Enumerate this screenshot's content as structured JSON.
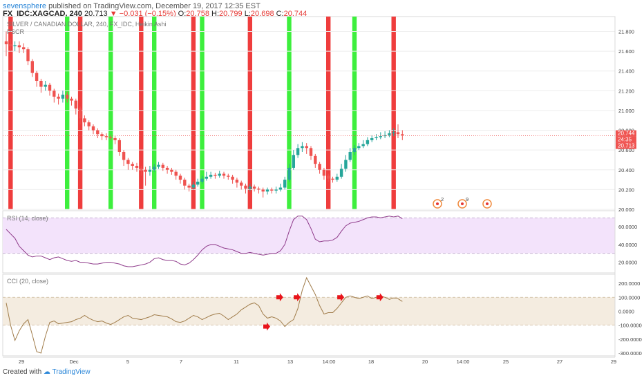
{
  "header": {
    "publisher": "sevensphere",
    "published_text": "published on TradingView.com, December 19, 2017 12:35 EST",
    "symbol": "FX_IDC:XAGCAD, 240",
    "last_price": "20.713",
    "change": "−0.031 (−0.15%)",
    "open_label": "O:",
    "open": "20.758",
    "high_label": "H:",
    "high": "20.799",
    "low_label": "L:",
    "low": "20.698",
    "close_label": "C:",
    "close": "20.744"
  },
  "main_pane": {
    "title": "SILVER / CANADIAN DOLLAR, 240, FX_IDC, Heikin Ashi",
    "indicator": "PSCR"
  },
  "rsi_pane": {
    "title": "RSI (14, close)"
  },
  "cci_pane": {
    "title": "CCI (20, close)"
  },
  "footer": {
    "created_with": "Created with",
    "brand": "TradingView"
  },
  "colors": {
    "bull": "#26a69a",
    "bear": "#ef5350",
    "green_band": "#33ee33",
    "red_band": "#ee3333",
    "rsi_line": "#8e3a8a",
    "rsi_band": "#f3e3fb",
    "cci_line": "#a07c4a",
    "cci_band": "#f4ece0",
    "price_line": "#ef5350",
    "axis_text": "#444444",
    "grid": "#eeeeee"
  },
  "chart_data": [
    {
      "type": "candlestick",
      "title": "SILVER / CANADIAN DOLLAR, 240, FX_IDC, Heikin Ashi",
      "ylim": [
        20.0,
        21.95
      ],
      "y_ticks": [
        "20.000",
        "20.200",
        "20.400",
        "20.600",
        "20.800",
        "21.000",
        "21.200",
        "21.400",
        "21.600",
        "21.800"
      ],
      "x_ticks": [
        "29",
        "Dec",
        "5",
        "7",
        "11",
        "13",
        "14:00",
        "18",
        "20",
        "14:00",
        "25",
        "27",
        "29"
      ],
      "price_labels": {
        "close": "20.744",
        "countdown": "24:35",
        "last": "20.713"
      },
      "candles": [
        [
          21.7,
          21.67,
          21.8,
          21.55
        ],
        [
          21.67,
          21.65,
          21.72,
          21.6
        ],
        [
          21.65,
          21.66,
          21.7,
          21.6
        ],
        [
          21.66,
          21.64,
          21.7,
          21.58
        ],
        [
          21.64,
          21.62,
          21.68,
          21.58
        ],
        [
          21.62,
          21.5,
          21.64,
          21.46
        ],
        [
          21.5,
          21.38,
          21.52,
          21.34
        ],
        [
          21.38,
          21.3,
          21.4,
          21.24
        ],
        [
          21.3,
          21.24,
          21.32,
          21.18
        ],
        [
          21.24,
          21.26,
          21.3,
          21.2
        ],
        [
          21.26,
          21.2,
          21.28,
          21.15
        ],
        [
          21.2,
          21.14,
          21.22,
          21.08
        ],
        [
          21.14,
          21.12,
          21.17,
          21.06
        ],
        [
          21.12,
          21.16,
          21.2,
          21.08
        ],
        [
          21.16,
          21.12,
          21.19,
          21.08
        ],
        [
          21.12,
          21.1,
          21.14,
          21.05
        ],
        [
          21.1,
          21.02,
          21.12,
          20.96
        ],
        [
          21.02,
          20.92,
          21.04,
          20.86
        ],
        [
          20.92,
          20.88,
          20.95,
          20.84
        ],
        [
          20.88,
          20.84,
          20.9,
          20.8
        ],
        [
          20.84,
          20.8,
          20.86,
          20.76
        ],
        [
          20.8,
          20.76,
          20.82,
          20.72
        ],
        [
          20.76,
          20.74,
          20.78,
          20.7
        ],
        [
          20.74,
          20.73,
          20.77,
          20.7
        ],
        [
          20.73,
          20.72,
          20.75,
          20.7
        ],
        [
          20.72,
          20.7,
          20.74,
          20.66
        ],
        [
          20.7,
          20.58,
          20.72,
          20.54
        ],
        [
          20.58,
          20.5,
          20.6,
          20.44
        ],
        [
          20.5,
          20.46,
          20.52,
          20.4
        ],
        [
          20.46,
          20.44,
          20.48,
          20.4
        ],
        [
          20.44,
          20.42,
          20.47,
          20.38
        ],
        [
          20.42,
          20.4,
          20.44,
          20.34
        ],
        [
          20.4,
          20.38,
          20.43,
          20.24
        ],
        [
          20.38,
          20.4,
          20.44,
          20.34
        ],
        [
          20.4,
          20.43,
          20.46,
          20.38
        ],
        [
          20.43,
          20.45,
          20.48,
          20.41
        ],
        [
          20.45,
          20.42,
          20.47,
          20.39
        ],
        [
          20.42,
          20.4,
          20.44,
          20.36
        ],
        [
          20.4,
          20.38,
          20.42,
          20.35
        ],
        [
          20.38,
          20.34,
          20.4,
          20.3
        ],
        [
          20.34,
          20.3,
          20.36,
          20.26
        ],
        [
          20.3,
          20.24,
          20.32,
          20.2
        ],
        [
          20.24,
          20.22,
          20.26,
          20.18
        ],
        [
          20.22,
          20.25,
          20.28,
          20.2
        ],
        [
          20.25,
          20.28,
          20.31,
          20.23
        ],
        [
          20.28,
          20.31,
          20.34,
          20.26
        ],
        [
          20.31,
          20.33,
          20.38,
          20.29
        ],
        [
          20.33,
          20.35,
          20.38,
          20.31
        ],
        [
          20.35,
          20.34,
          20.37,
          20.31
        ],
        [
          20.34,
          20.36,
          20.39,
          20.32
        ],
        [
          20.36,
          20.34,
          20.38,
          20.31
        ],
        [
          20.34,
          20.33,
          20.36,
          20.3
        ],
        [
          20.33,
          20.3,
          20.35,
          20.26
        ],
        [
          20.3,
          20.27,
          20.32,
          20.22
        ],
        [
          20.27,
          20.24,
          20.29,
          20.2
        ],
        [
          20.24,
          20.21,
          20.26,
          20.16
        ],
        [
          20.21,
          20.23,
          20.26,
          20.18
        ],
        [
          20.23,
          20.21,
          20.25,
          20.18
        ],
        [
          20.21,
          20.2,
          20.23,
          20.16
        ],
        [
          20.2,
          20.18,
          20.22,
          20.12
        ],
        [
          20.18,
          20.2,
          20.22,
          20.15
        ],
        [
          20.2,
          20.19,
          20.22,
          20.16
        ],
        [
          20.19,
          20.2,
          20.23,
          20.16
        ],
        [
          20.2,
          20.22,
          20.26,
          20.18
        ],
        [
          20.22,
          20.3,
          20.33,
          20.2
        ],
        [
          20.3,
          20.42,
          20.46,
          20.28
        ],
        [
          20.42,
          20.55,
          20.6,
          20.4
        ],
        [
          20.55,
          20.62,
          20.66,
          20.52
        ],
        [
          20.62,
          20.64,
          20.68,
          20.58
        ],
        [
          20.64,
          20.62,
          20.67,
          20.56
        ],
        [
          20.62,
          20.54,
          20.64,
          20.5
        ],
        [
          20.54,
          20.46,
          20.56,
          20.42
        ],
        [
          20.46,
          20.4,
          20.48,
          20.36
        ],
        [
          20.4,
          20.34,
          20.42,
          20.3
        ],
        [
          20.34,
          20.31,
          20.36,
          20.28
        ],
        [
          20.31,
          20.3,
          20.33,
          20.27
        ],
        [
          20.3,
          20.33,
          20.36,
          20.28
        ],
        [
          20.33,
          20.41,
          20.46,
          20.31
        ],
        [
          20.41,
          20.5,
          20.55,
          20.38
        ],
        [
          20.5,
          20.58,
          20.62,
          20.48
        ],
        [
          20.58,
          20.62,
          20.65,
          20.55
        ],
        [
          20.62,
          20.64,
          20.67,
          20.6
        ],
        [
          20.64,
          20.66,
          20.7,
          20.62
        ],
        [
          20.66,
          20.7,
          20.73,
          20.64
        ],
        [
          20.7,
          20.72,
          20.75,
          20.68
        ],
        [
          20.72,
          20.73,
          20.76,
          20.7
        ],
        [
          20.73,
          20.74,
          20.78,
          20.71
        ],
        [
          20.74,
          20.75,
          20.79,
          20.72
        ],
        [
          20.75,
          20.77,
          20.8,
          20.73
        ],
        [
          20.77,
          20.78,
          20.82,
          20.74
        ],
        [
          20.78,
          20.76,
          20.86,
          20.72
        ],
        [
          20.76,
          20.75,
          20.8,
          20.7
        ]
      ],
      "signal_bands": [
        {
          "bar": 1,
          "color": "red"
        },
        {
          "bar": 14,
          "color": "green"
        },
        {
          "bar": 17,
          "color": "red"
        },
        {
          "bar": 24,
          "color": "green"
        },
        {
          "bar": 31,
          "color": "red"
        },
        {
          "bar": 34,
          "color": "green"
        },
        {
          "bar": 43,
          "color": "red"
        },
        {
          "bar": 45,
          "color": "green"
        },
        {
          "bar": 56,
          "color": "red"
        },
        {
          "bar": 65,
          "color": "green"
        },
        {
          "bar": 74,
          "color": "red"
        },
        {
          "bar": 80,
          "color": "green"
        },
        {
          "bar": 89,
          "color": "red"
        }
      ]
    },
    {
      "type": "line",
      "title": "RSI (14, close)",
      "ylim": [
        8,
        78
      ],
      "y_ticks": [
        "20.0000",
        "40.0000",
        "60.0000"
      ],
      "band": [
        30,
        70
      ],
      "values": [
        57,
        52,
        47,
        38,
        33,
        28,
        26,
        27,
        27,
        25,
        23,
        25,
        26,
        24,
        22,
        21,
        22,
        20,
        20,
        19,
        18,
        18,
        19,
        20,
        20,
        19,
        18,
        16,
        15,
        15,
        16,
        17,
        18,
        20,
        24,
        25,
        23,
        22,
        22,
        21,
        18,
        17,
        19,
        23,
        28,
        34,
        38,
        40,
        40,
        38,
        36,
        35,
        34,
        32,
        30,
        30,
        31,
        30,
        29,
        28,
        29,
        30,
        30,
        33,
        40,
        55,
        68,
        72,
        72,
        68,
        58,
        46,
        43,
        44,
        44,
        45,
        48,
        55,
        61,
        64,
        65,
        66,
        68,
        70,
        71,
        71,
        70,
        71,
        72,
        71,
        72,
        69
      ]
    },
    {
      "type": "line",
      "title": "CCI (20, close)",
      "ylim": [
        -320,
        265
      ],
      "y_ticks": [
        "-300.0000",
        "-200.0000",
        "-100.0000",
        "0.0000",
        "100.0000",
        "200.0000"
      ],
      "band": [
        -100,
        100
      ],
      "values": [
        60,
        -100,
        -210,
        -140,
        -90,
        -60,
        -170,
        -290,
        -300,
        -180,
        -80,
        -70,
        -90,
        -85,
        -80,
        -75,
        -60,
        -50,
        -30,
        -50,
        -65,
        -75,
        -70,
        -85,
        -95,
        -80,
        -60,
        -40,
        -30,
        -50,
        -55,
        -60,
        -50,
        -40,
        -25,
        -30,
        -35,
        -40,
        -55,
        -75,
        -80,
        -70,
        -50,
        -30,
        -40,
        -60,
        -45,
        -30,
        -20,
        -15,
        -35,
        -60,
        -40,
        -20,
        10,
        30,
        50,
        60,
        40,
        -20,
        -50,
        -40,
        -50,
        -70,
        -110,
        -80,
        -60,
        20,
        150,
        240,
        180,
        120,
        40,
        -20,
        -10,
        -10,
        20,
        60,
        100,
        110,
        100,
        90,
        100,
        110,
        90,
        100,
        110,
        100,
        85,
        95,
        90,
        70
      ]
    },
    {
      "type": "annotations",
      "markers": [
        {
          "bar": 60,
          "value": -110
        },
        {
          "bar": 63,
          "value": 100
        },
        {
          "bar": 67,
          "value": 100
        },
        {
          "bar": 77,
          "value": 100
        },
        {
          "bar": 86,
          "value": 100
        }
      ],
      "event_badges": [
        "2",
        "9",
        ""
      ]
    }
  ]
}
